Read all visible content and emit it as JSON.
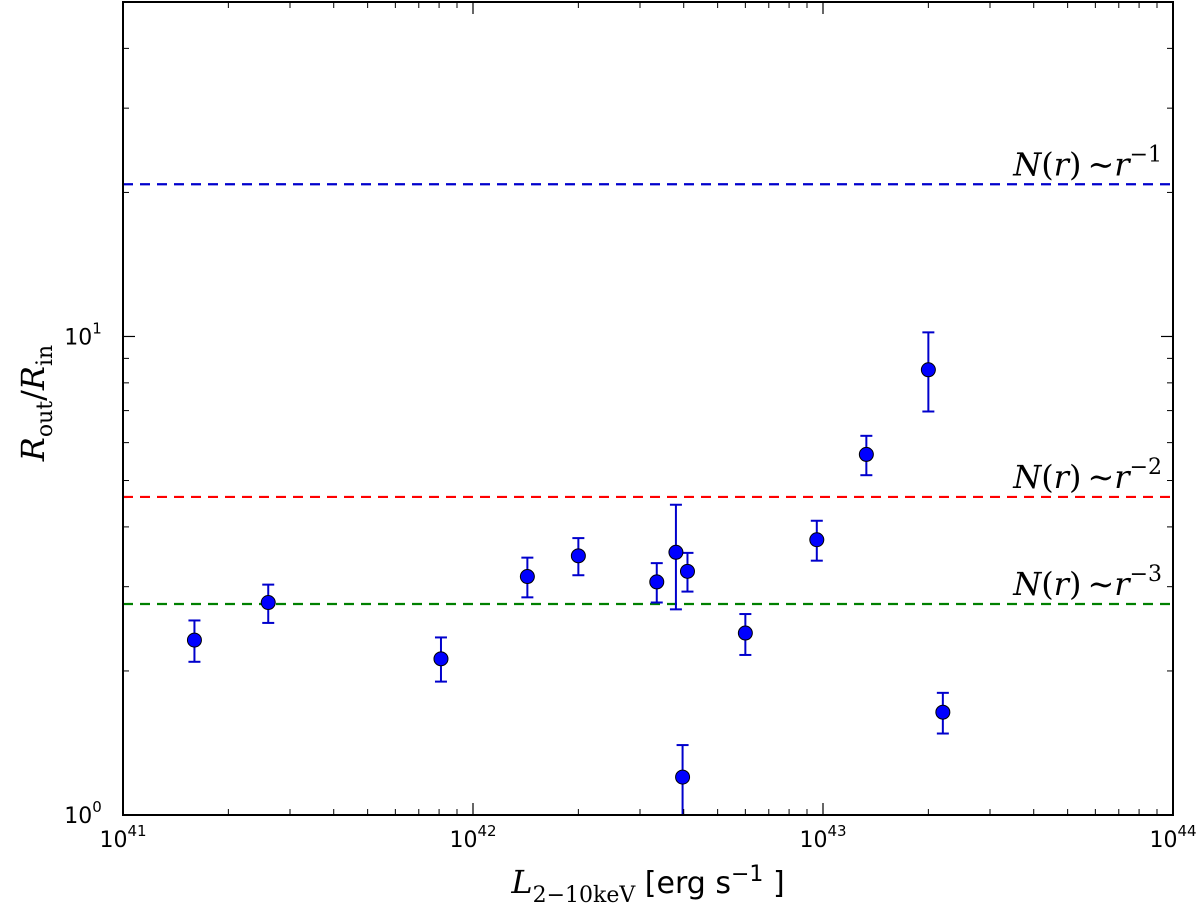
{
  "chart_data": {
    "type": "scatter",
    "x_scale": "log",
    "y_scale": "log",
    "xlim": [
      1e+41,
      1e+44
    ],
    "ylim": [
      1,
      50
    ],
    "x_ticks": [
      {
        "value": 1e+41,
        "base": "10",
        "exp": "41"
      },
      {
        "value": 1e+42,
        "base": "10",
        "exp": "42"
      },
      {
        "value": 1e+43,
        "base": "10",
        "exp": "43"
      },
      {
        "value": 1e+44,
        "base": "10",
        "exp": "44"
      }
    ],
    "y_ticks": [
      {
        "value": 1,
        "base": "10",
        "exp": "0"
      },
      {
        "value": 10,
        "base": "10",
        "exp": "1"
      }
    ],
    "xlabel": {
      "main": "L",
      "sub": "2−10keV",
      "unit_open": " [erg s",
      "unit_exp": "−1",
      "unit_close": " ]"
    },
    "ylabel": {
      "num": "R",
      "num_sub": "out",
      "slash": "/",
      "den": "R",
      "den_sub": "in"
    },
    "grid": false,
    "marker_color": "#0000ff",
    "reference_lines": [
      {
        "y": 20.8,
        "color": "#0000cc",
        "label": {
          "n": "N",
          "arg": "r",
          "sim": "∼",
          "r": "r",
          "exp": "−1"
        }
      },
      {
        "y": 4.62,
        "color": "#ff0000",
        "label": {
          "n": "N",
          "arg": "r",
          "sim": "∼",
          "r": "r",
          "exp": "−2"
        }
      },
      {
        "y": 2.76,
        "color": "#008000",
        "label": {
          "n": "N",
          "arg": "r",
          "sim": "∼",
          "r": "r",
          "exp": "−3"
        }
      }
    ],
    "points": [
      {
        "x": 1.6e+41,
        "y": 2.32,
        "ylo": 2.09,
        "yhi": 2.55
      },
      {
        "x": 2.6e+41,
        "y": 2.78,
        "ylo": 2.52,
        "yhi": 3.03
      },
      {
        "x": 8.1e+41,
        "y": 2.12,
        "ylo": 1.9,
        "yhi": 2.35
      },
      {
        "x": 1.43e+42,
        "y": 3.15,
        "ylo": 2.85,
        "yhi": 3.45
      },
      {
        "x": 2e+42,
        "y": 3.48,
        "ylo": 3.17,
        "yhi": 3.79
      },
      {
        "x": 3.35e+42,
        "y": 3.07,
        "ylo": 2.78,
        "yhi": 3.36
      },
      {
        "x": 3.8e+42,
        "y": 3.54,
        "ylo": 2.69,
        "yhi": 4.45
      },
      {
        "x": 4.1e+42,
        "y": 3.23,
        "ylo": 2.93,
        "yhi": 3.53
      },
      {
        "x": 3.97e+42,
        "y": 1.2,
        "ylo": 1.0,
        "yhi": 1.4
      },
      {
        "x": 6e+42,
        "y": 2.4,
        "ylo": 2.16,
        "yhi": 2.63
      },
      {
        "x": 9.6e+42,
        "y": 3.76,
        "ylo": 3.4,
        "yhi": 4.12
      },
      {
        "x": 1.33e+43,
        "y": 5.67,
        "ylo": 5.13,
        "yhi": 6.2
      },
      {
        "x": 2e+43,
        "y": 8.52,
        "ylo": 6.97,
        "yhi": 10.2
      },
      {
        "x": 2.2e+43,
        "y": 1.64,
        "ylo": 1.48,
        "yhi": 1.8
      }
    ]
  }
}
